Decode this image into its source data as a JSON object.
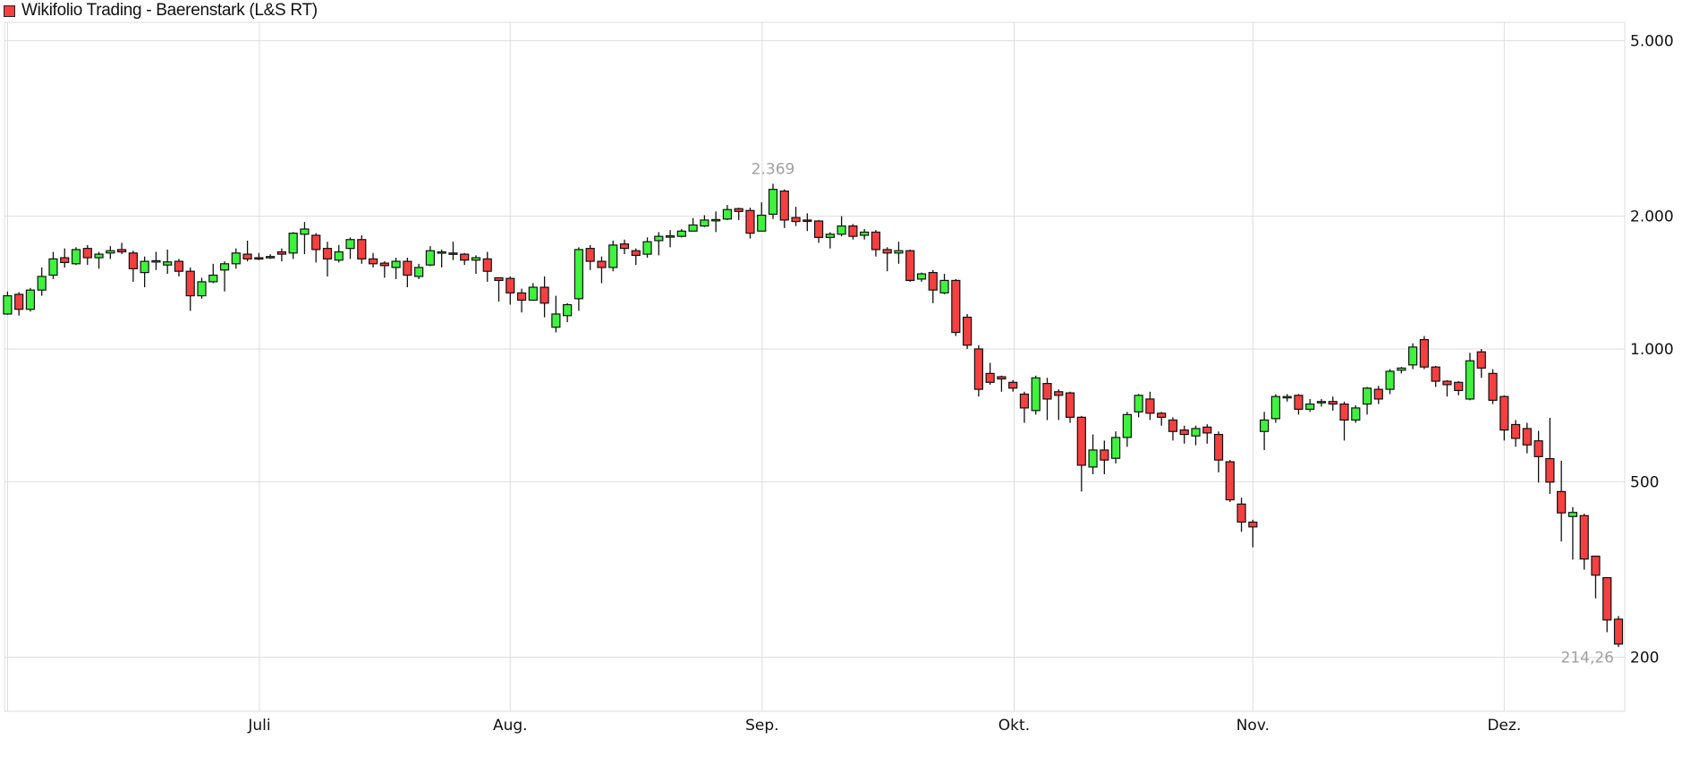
{
  "chart_data": {
    "type": "candlestick",
    "title": "Wikifolio Trading - Baerenstark (L&S RT)",
    "y_scale": "log",
    "y_ticks": [
      5000,
      2000,
      1000,
      500,
      200
    ],
    "y_tick_labels": [
      "5.000",
      "2.000",
      "1.000",
      "500",
      "200"
    ],
    "ylim": [
      150,
      5600
    ],
    "x_tick_labels": [
      "Juli",
      "Aug.",
      "Sep.",
      "Okt.",
      "Nov.",
      "Dez."
    ],
    "grid": true,
    "colors": {
      "up": "#3ef23e",
      "down": "#f44040",
      "grid": "#dddddd",
      "annotation": "#a0a0a0"
    },
    "annotations": {
      "high_label": "2.369",
      "last_label": "214,26"
    },
    "candles": [
      {
        "o": 1200,
        "h": 1350,
        "l": 1195,
        "c": 1320
      },
      {
        "o": 1330,
        "h": 1345,
        "l": 1190,
        "c": 1230
      },
      {
        "o": 1230,
        "h": 1375,
        "l": 1215,
        "c": 1360
      },
      {
        "o": 1360,
        "h": 1530,
        "l": 1320,
        "c": 1460
      },
      {
        "o": 1470,
        "h": 1660,
        "l": 1440,
        "c": 1600
      },
      {
        "o": 1610,
        "h": 1690,
        "l": 1530,
        "c": 1570
      },
      {
        "o": 1560,
        "h": 1700,
        "l": 1550,
        "c": 1680
      },
      {
        "o": 1690,
        "h": 1720,
        "l": 1550,
        "c": 1610
      },
      {
        "o": 1610,
        "h": 1660,
        "l": 1520,
        "c": 1640
      },
      {
        "o": 1650,
        "h": 1710,
        "l": 1600,
        "c": 1670
      },
      {
        "o": 1680,
        "h": 1740,
        "l": 1640,
        "c": 1660
      },
      {
        "o": 1650,
        "h": 1670,
        "l": 1420,
        "c": 1520
      },
      {
        "o": 1490,
        "h": 1620,
        "l": 1380,
        "c": 1580
      },
      {
        "o": 1580,
        "h": 1660,
        "l": 1510,
        "c": 1585
      },
      {
        "o": 1550,
        "h": 1680,
        "l": 1480,
        "c": 1575
      },
      {
        "o": 1580,
        "h": 1600,
        "l": 1460,
        "c": 1500
      },
      {
        "o": 1500,
        "h": 1530,
        "l": 1220,
        "c": 1320
      },
      {
        "o": 1320,
        "h": 1450,
        "l": 1300,
        "c": 1420
      },
      {
        "o": 1420,
        "h": 1560,
        "l": 1410,
        "c": 1470
      },
      {
        "o": 1510,
        "h": 1580,
        "l": 1350,
        "c": 1560
      },
      {
        "o": 1560,
        "h": 1690,
        "l": 1520,
        "c": 1650
      },
      {
        "o": 1640,
        "h": 1760,
        "l": 1580,
        "c": 1600
      },
      {
        "o": 1610,
        "h": 1650,
        "l": 1590,
        "c": 1600
      },
      {
        "o": 1615,
        "h": 1640,
        "l": 1600,
        "c": 1620
      },
      {
        "o": 1660,
        "h": 1690,
        "l": 1580,
        "c": 1640
      },
      {
        "o": 1650,
        "h": 1840,
        "l": 1600,
        "c": 1830
      },
      {
        "o": 1820,
        "h": 1940,
        "l": 1640,
        "c": 1870
      },
      {
        "o": 1810,
        "h": 1830,
        "l": 1570,
        "c": 1680
      },
      {
        "o": 1690,
        "h": 1750,
        "l": 1460,
        "c": 1600
      },
      {
        "o": 1590,
        "h": 1720,
        "l": 1570,
        "c": 1660
      },
      {
        "o": 1690,
        "h": 1790,
        "l": 1600,
        "c": 1770
      },
      {
        "o": 1770,
        "h": 1810,
        "l": 1560,
        "c": 1600
      },
      {
        "o": 1600,
        "h": 1650,
        "l": 1530,
        "c": 1560
      },
      {
        "o": 1565,
        "h": 1580,
        "l": 1450,
        "c": 1545
      },
      {
        "o": 1530,
        "h": 1610,
        "l": 1440,
        "c": 1580
      },
      {
        "o": 1580,
        "h": 1610,
        "l": 1380,
        "c": 1470
      },
      {
        "o": 1460,
        "h": 1560,
        "l": 1440,
        "c": 1530
      },
      {
        "o": 1550,
        "h": 1710,
        "l": 1540,
        "c": 1670
      },
      {
        "o": 1650,
        "h": 1680,
        "l": 1530,
        "c": 1660
      },
      {
        "o": 1650,
        "h": 1750,
        "l": 1590,
        "c": 1645
      },
      {
        "o": 1640,
        "h": 1650,
        "l": 1550,
        "c": 1590
      },
      {
        "o": 1590,
        "h": 1630,
        "l": 1480,
        "c": 1610
      },
      {
        "o": 1600,
        "h": 1660,
        "l": 1420,
        "c": 1500
      },
      {
        "o": 1450,
        "h": 1450,
        "l": 1280,
        "c": 1430
      },
      {
        "o": 1445,
        "h": 1460,
        "l": 1260,
        "c": 1340
      },
      {
        "o": 1340,
        "h": 1370,
        "l": 1210,
        "c": 1290
      },
      {
        "o": 1290,
        "h": 1410,
        "l": 1290,
        "c": 1380
      },
      {
        "o": 1380,
        "h": 1460,
        "l": 1180,
        "c": 1270
      },
      {
        "o": 1120,
        "h": 1320,
        "l": 1090,
        "c": 1200
      },
      {
        "o": 1190,
        "h": 1270,
        "l": 1150,
        "c": 1260
      },
      {
        "o": 1300,
        "h": 1700,
        "l": 1220,
        "c": 1680
      },
      {
        "o": 1690,
        "h": 1720,
        "l": 1510,
        "c": 1580
      },
      {
        "o": 1580,
        "h": 1620,
        "l": 1410,
        "c": 1530
      },
      {
        "o": 1530,
        "h": 1760,
        "l": 1500,
        "c": 1720
      },
      {
        "o": 1730,
        "h": 1770,
        "l": 1640,
        "c": 1690
      },
      {
        "o": 1670,
        "h": 1690,
        "l": 1550,
        "c": 1630
      },
      {
        "o": 1640,
        "h": 1790,
        "l": 1610,
        "c": 1750
      },
      {
        "o": 1760,
        "h": 1840,
        "l": 1630,
        "c": 1800
      },
      {
        "o": 1800,
        "h": 1860,
        "l": 1700,
        "c": 1805
      },
      {
        "o": 1800,
        "h": 1870,
        "l": 1790,
        "c": 1850
      },
      {
        "o": 1850,
        "h": 1980,
        "l": 1850,
        "c": 1910
      },
      {
        "o": 1900,
        "h": 2010,
        "l": 1890,
        "c": 1960
      },
      {
        "o": 1960,
        "h": 2050,
        "l": 1840,
        "c": 1965
      },
      {
        "o": 1970,
        "h": 2120,
        "l": 1960,
        "c": 2070
      },
      {
        "o": 2080,
        "h": 2090,
        "l": 1960,
        "c": 2050
      },
      {
        "o": 2060,
        "h": 2090,
        "l": 1780,
        "c": 1830
      },
      {
        "o": 1850,
        "h": 2150,
        "l": 1850,
        "c": 2010
      },
      {
        "o": 2020,
        "h": 2369,
        "l": 1970,
        "c": 2300
      },
      {
        "o": 2280,
        "h": 2300,
        "l": 1880,
        "c": 1960
      },
      {
        "o": 1985,
        "h": 2100,
        "l": 1900,
        "c": 1945
      },
      {
        "o": 1960,
        "h": 2030,
        "l": 1850,
        "c": 1955
      },
      {
        "o": 1950,
        "h": 1960,
        "l": 1740,
        "c": 1790
      },
      {
        "o": 1790,
        "h": 1840,
        "l": 1690,
        "c": 1820
      },
      {
        "o": 1820,
        "h": 2000,
        "l": 1800,
        "c": 1900
      },
      {
        "o": 1900,
        "h": 1920,
        "l": 1770,
        "c": 1800
      },
      {
        "o": 1810,
        "h": 1870,
        "l": 1770,
        "c": 1840
      },
      {
        "o": 1840,
        "h": 1860,
        "l": 1620,
        "c": 1680
      },
      {
        "o": 1680,
        "h": 1700,
        "l": 1500,
        "c": 1650
      },
      {
        "o": 1650,
        "h": 1750,
        "l": 1560,
        "c": 1670
      },
      {
        "o": 1670,
        "h": 1680,
        "l": 1420,
        "c": 1430
      },
      {
        "o": 1440,
        "h": 1490,
        "l": 1420,
        "c": 1480
      },
      {
        "o": 1490,
        "h": 1510,
        "l": 1270,
        "c": 1360
      },
      {
        "o": 1340,
        "h": 1480,
        "l": 1330,
        "c": 1430
      },
      {
        "o": 1430,
        "h": 1440,
        "l": 1070,
        "c": 1090
      },
      {
        "o": 1180,
        "h": 1200,
        "l": 1000,
        "c": 1020
      },
      {
        "o": 1000,
        "h": 1020,
        "l": 780,
        "c": 810
      },
      {
        "o": 880,
        "h": 930,
        "l": 830,
        "c": 840
      },
      {
        "o": 865,
        "h": 870,
        "l": 800,
        "c": 855
      },
      {
        "o": 840,
        "h": 850,
        "l": 800,
        "c": 815
      },
      {
        "o": 790,
        "h": 800,
        "l": 680,
        "c": 735
      },
      {
        "o": 725,
        "h": 870,
        "l": 710,
        "c": 860
      },
      {
        "o": 835,
        "h": 860,
        "l": 690,
        "c": 770
      },
      {
        "o": 800,
        "h": 810,
        "l": 690,
        "c": 785
      },
      {
        "o": 795,
        "h": 800,
        "l": 680,
        "c": 700
      },
      {
        "o": 700,
        "h": 705,
        "l": 475,
        "c": 545
      },
      {
        "o": 540,
        "h": 640,
        "l": 520,
        "c": 590
      },
      {
        "o": 590,
        "h": 620,
        "l": 520,
        "c": 560
      },
      {
        "o": 565,
        "h": 650,
        "l": 550,
        "c": 630
      },
      {
        "o": 630,
        "h": 720,
        "l": 600,
        "c": 710
      },
      {
        "o": 720,
        "h": 790,
        "l": 700,
        "c": 785
      },
      {
        "o": 770,
        "h": 800,
        "l": 690,
        "c": 715
      },
      {
        "o": 715,
        "h": 720,
        "l": 670,
        "c": 700
      },
      {
        "o": 690,
        "h": 700,
        "l": 620,
        "c": 650
      },
      {
        "o": 655,
        "h": 670,
        "l": 610,
        "c": 640
      },
      {
        "o": 635,
        "h": 670,
        "l": 605,
        "c": 660
      },
      {
        "o": 665,
        "h": 675,
        "l": 610,
        "c": 645
      },
      {
        "o": 640,
        "h": 650,
        "l": 525,
        "c": 560
      },
      {
        "o": 555,
        "h": 560,
        "l": 450,
        "c": 455
      },
      {
        "o": 445,
        "h": 460,
        "l": 385,
        "c": 405
      },
      {
        "o": 405,
        "h": 410,
        "l": 355,
        "c": 395
      },
      {
        "o": 650,
        "h": 720,
        "l": 590,
        "c": 690
      },
      {
        "o": 695,
        "h": 790,
        "l": 680,
        "c": 780
      },
      {
        "o": 775,
        "h": 790,
        "l": 760,
        "c": 780
      },
      {
        "o": 785,
        "h": 790,
        "l": 710,
        "c": 730
      },
      {
        "o": 730,
        "h": 770,
        "l": 720,
        "c": 750
      },
      {
        "o": 755,
        "h": 770,
        "l": 740,
        "c": 760
      },
      {
        "o": 760,
        "h": 780,
        "l": 725,
        "c": 750
      },
      {
        "o": 750,
        "h": 760,
        "l": 620,
        "c": 690
      },
      {
        "o": 690,
        "h": 745,
        "l": 680,
        "c": 735
      },
      {
        "o": 750,
        "h": 820,
        "l": 710,
        "c": 815
      },
      {
        "o": 810,
        "h": 825,
        "l": 750,
        "c": 770
      },
      {
        "o": 810,
        "h": 900,
        "l": 790,
        "c": 890
      },
      {
        "o": 895,
        "h": 910,
        "l": 880,
        "c": 905
      },
      {
        "o": 920,
        "h": 1030,
        "l": 900,
        "c": 1010
      },
      {
        "o": 1050,
        "h": 1070,
        "l": 900,
        "c": 910
      },
      {
        "o": 910,
        "h": 915,
        "l": 820,
        "c": 845
      },
      {
        "o": 845,
        "h": 850,
        "l": 780,
        "c": 830
      },
      {
        "o": 840,
        "h": 845,
        "l": 785,
        "c": 805
      },
      {
        "o": 770,
        "h": 980,
        "l": 765,
        "c": 940
      },
      {
        "o": 985,
        "h": 1000,
        "l": 860,
        "c": 905
      },
      {
        "o": 880,
        "h": 900,
        "l": 750,
        "c": 765
      },
      {
        "o": 780,
        "h": 785,
        "l": 620,
        "c": 655
      },
      {
        "o": 674,
        "h": 690,
        "l": 600,
        "c": 627
      },
      {
        "o": 660,
        "h": 680,
        "l": 580,
        "c": 606
      },
      {
        "o": 619,
        "h": 652,
        "l": 498,
        "c": 570
      },
      {
        "o": 564,
        "h": 698,
        "l": 469,
        "c": 499
      },
      {
        "o": 475,
        "h": 558,
        "l": 366,
        "c": 425
      },
      {
        "o": 417,
        "h": 438,
        "l": 333,
        "c": 426
      },
      {
        "o": 419,
        "h": 423,
        "l": 316,
        "c": 334
      },
      {
        "o": 339,
        "h": 339,
        "l": 272,
        "c": 307
      },
      {
        "o": 303,
        "h": 303,
        "l": 228,
        "c": 243
      },
      {
        "o": 244,
        "h": 248,
        "l": 211,
        "c": 214.26
      }
    ]
  }
}
